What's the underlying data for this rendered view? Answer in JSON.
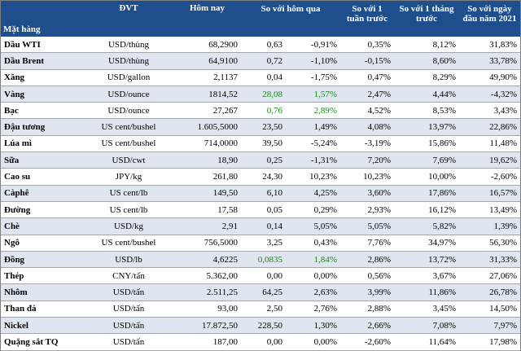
{
  "headers": [
    "Mặt hàng",
    "ĐVT",
    "Hôm nay",
    "So với hôm qua",
    "",
    "So với 1 tuần trước",
    "So với 1 tháng trước",
    "So với ngày đầu năm 2021"
  ],
  "colors": {
    "header_bg": "#1f4e8c",
    "stripe": "#dfe6f0",
    "up": "#1a8a1a"
  },
  "rows": [
    {
      "name": "Dầu WTI",
      "unit": "USD/thùng",
      "today": "68,2900",
      "chg": "0,63",
      "chg_pct": "-0,91%",
      "week": "0,35%",
      "month": "8,12%",
      "ytd": "31,83%",
      "up": false
    },
    {
      "name": "Dầu Brent",
      "unit": "USD/thùng",
      "today": "64,9100",
      "chg": "0,72",
      "chg_pct": "-1,10%",
      "week": "-0,15%",
      "month": "8,60%",
      "ytd": "33,78%",
      "up": false
    },
    {
      "name": "Xăng",
      "unit": "USD/gallon",
      "today": "2,1137",
      "chg": "0,04",
      "chg_pct": "-1,75%",
      "week": "0,47%",
      "month": "8,29%",
      "ytd": "49,90%",
      "up": false
    },
    {
      "name": "Vàng",
      "unit": "USD/ounce",
      "today": "1814,52",
      "chg": "28,08",
      "chg_pct": "1,57%",
      "week": "2,47%",
      "month": "4,44%",
      "ytd": "-4,32%",
      "up": true
    },
    {
      "name": "Bạc",
      "unit": "USD/ounce",
      "today": "27,267",
      "chg": "0,76",
      "chg_pct": "2,89%",
      "week": "4,52%",
      "month": "8,53%",
      "ytd": "3,43%",
      "up": true
    },
    {
      "name": "Đậu tương",
      "unit": "US cent/bushel",
      "today": "1.605,5000",
      "chg": "23,50",
      "chg_pct": "1,49%",
      "week": "4,08%",
      "month": "13,97%",
      "ytd": "22,86%",
      "up": false
    },
    {
      "name": "Lúa mì",
      "unit": "US cent/bushel",
      "today": "714,0000",
      "chg": "39,50",
      "chg_pct": "-5,24%",
      "week": "-3,19%",
      "month": "15,86%",
      "ytd": "11,48%",
      "up": false
    },
    {
      "name": "Sữa",
      "unit": "USD/cwt",
      "today": "18,90",
      "chg": "0,25",
      "chg_pct": "-1,31%",
      "week": "7,20%",
      "month": "7,69%",
      "ytd": "19,62%",
      "up": false
    },
    {
      "name": "Cao su",
      "unit": "JPY/kg",
      "today": "261,80",
      "chg": "24,30",
      "chg_pct": "10,23%",
      "week": "10,23%",
      "month": "10,00%",
      "ytd": "-2,60%",
      "up": false
    },
    {
      "name": "Càphê",
      "unit": "US cent/lb",
      "today": "149,50",
      "chg": "6,10",
      "chg_pct": "4,25%",
      "week": "3,60%",
      "month": "17,86%",
      "ytd": "16,57%",
      "up": false
    },
    {
      "name": "Đường",
      "unit": "US cent/lb",
      "today": "17,58",
      "chg": "0,05",
      "chg_pct": "0,29%",
      "week": "2,93%",
      "month": "16,12%",
      "ytd": "13,49%",
      "up": false
    },
    {
      "name": "Chè",
      "unit": "USD/kg",
      "today": "2,91",
      "chg": "0,14",
      "chg_pct": "5,05%",
      "week": "5,05%",
      "month": "5,82%",
      "ytd": "1,39%",
      "up": false
    },
    {
      "name": "Ngô",
      "unit": "US cent/bushel",
      "today": "756,5000",
      "chg": "3,25",
      "chg_pct": "0,43%",
      "week": "7,76%",
      "month": "34,97%",
      "ytd": "56,30%",
      "up": false
    },
    {
      "name": "Đồng",
      "unit": "USD/lb",
      "today": "4,6225",
      "chg": "0,0835",
      "chg_pct": "1,84%",
      "week": "2,86%",
      "month": "13,72%",
      "ytd": "31,33%",
      "up": true
    },
    {
      "name": "Thép",
      "unit": "CNY/tấn",
      "today": "5.362,00",
      "chg": "0,00",
      "chg_pct": "0,00%",
      "week": "0,56%",
      "month": "3,67%",
      "ytd": "27,06%",
      "up": false
    },
    {
      "name": "Nhôm",
      "unit": "USD/tấn",
      "today": "2.511,25",
      "chg": "64,25",
      "chg_pct": "2,63%",
      "week": "3,99%",
      "month": "11,86%",
      "ytd": "26,78%",
      "up": false
    },
    {
      "name": "Than đá",
      "unit": "USD/tấn",
      "today": "93,00",
      "chg": "2,50",
      "chg_pct": "2,76%",
      "week": "2,88%",
      "month": "3,45%",
      "ytd": "14,50%",
      "up": false
    },
    {
      "name": "Nickel",
      "unit": "USD/tấn",
      "today": "17.872,50",
      "chg": "228,50",
      "chg_pct": "1,30%",
      "week": "2,66%",
      "month": "7,08%",
      "ytd": "7,97%",
      "up": false
    },
    {
      "name": "Quặng sắt TQ",
      "unit": "USD/tấn",
      "today": "187,00",
      "chg": "0,00",
      "chg_pct": "0,00%",
      "week": "-2,60%",
      "month": "11,64%",
      "ytd": "17,98%",
      "up": false
    }
  ]
}
